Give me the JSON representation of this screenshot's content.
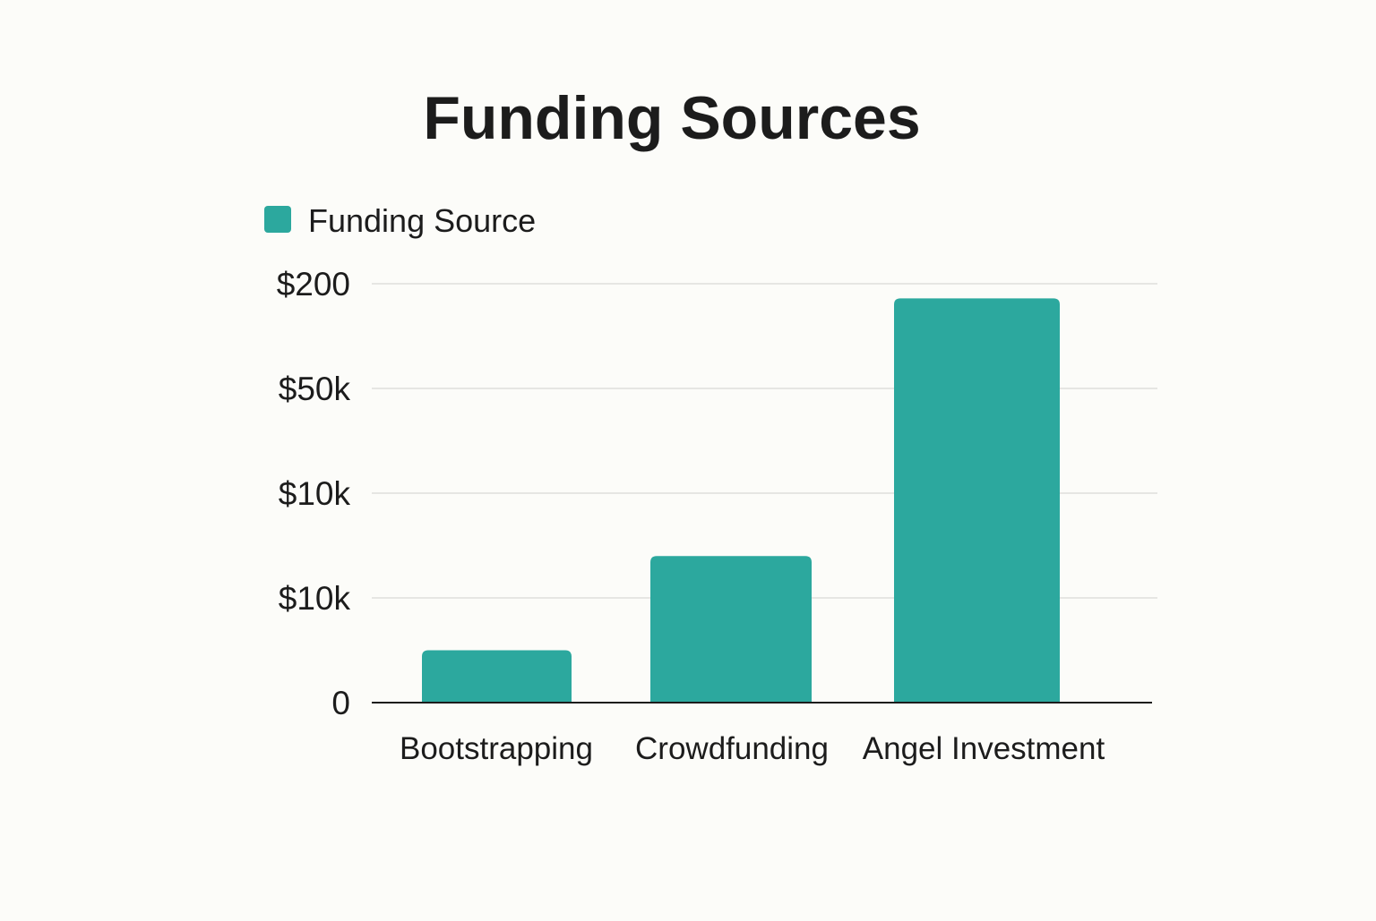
{
  "chart_data": {
    "type": "bar",
    "title": "Funding Sources",
    "xlabel": "",
    "ylabel": "",
    "legend": {
      "placement": "top-left",
      "entries": [
        "Funding Source"
      ]
    },
    "grid": true,
    "y_ticks": [
      "0",
      "$10k",
      "$10k",
      "$50k",
      "$200"
    ],
    "categories": [
      "Bootstrapping",
      "Crowdfunding",
      "Angel Investment"
    ],
    "series": [
      {
        "name": "Funding Source",
        "values": [
          0.5,
          1.4,
          3.86
        ]
      }
    ],
    "ylim": [
      0,
      4
    ],
    "colors": {
      "bar": "#2ca89e",
      "text": "#1c1c1c",
      "grid": "#e6e6e3",
      "axis": "#1c1c1c"
    }
  }
}
